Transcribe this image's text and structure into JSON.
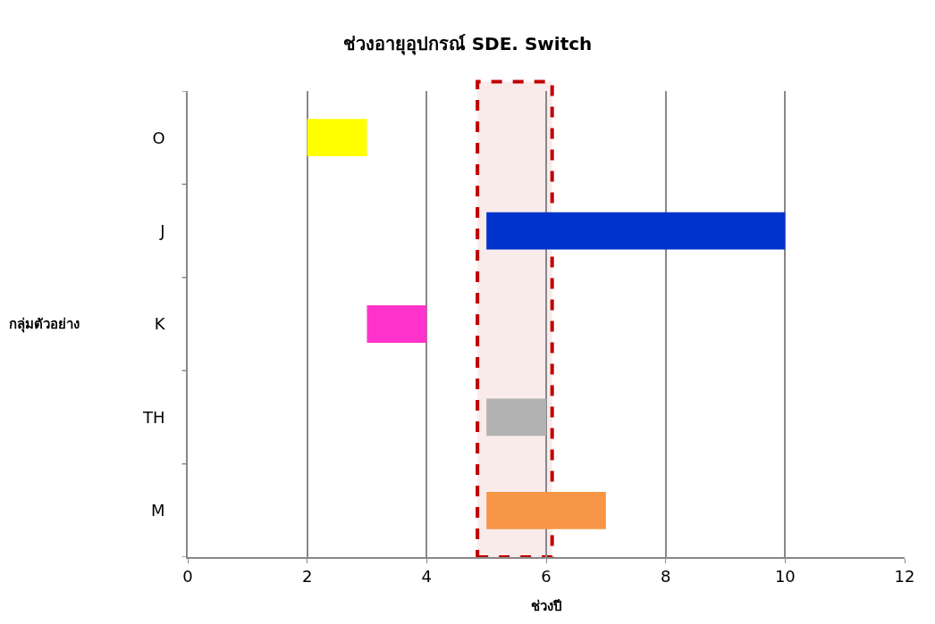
{
  "chart_data": {
    "type": "bar",
    "orientation": "horizontal",
    "title": "ช่วงอายุอุปกรณ์ SDE. Switch",
    "xlabel": "ช่วงปี",
    "ylabel": "กลุ่มตัวอย่าง",
    "categories": [
      "O",
      "J",
      "K",
      "TH",
      "M"
    ],
    "base": [
      2,
      5,
      3,
      5,
      5
    ],
    "values": [
      1,
      5,
      1,
      1,
      2
    ],
    "colors": [
      "#ffff00",
      "#0033cc",
      "#ff33cc",
      "#b2b2b2",
      "#f79646"
    ],
    "xlim": [
      0,
      12
    ],
    "xticks": [
      0,
      2,
      4,
      6,
      8,
      10,
      12
    ],
    "grid": "x",
    "legend": false,
    "bands": [
      {
        "axis": "x",
        "from": 4.85,
        "to": 6.1,
        "label": null,
        "color": "#c00000"
      }
    ]
  }
}
